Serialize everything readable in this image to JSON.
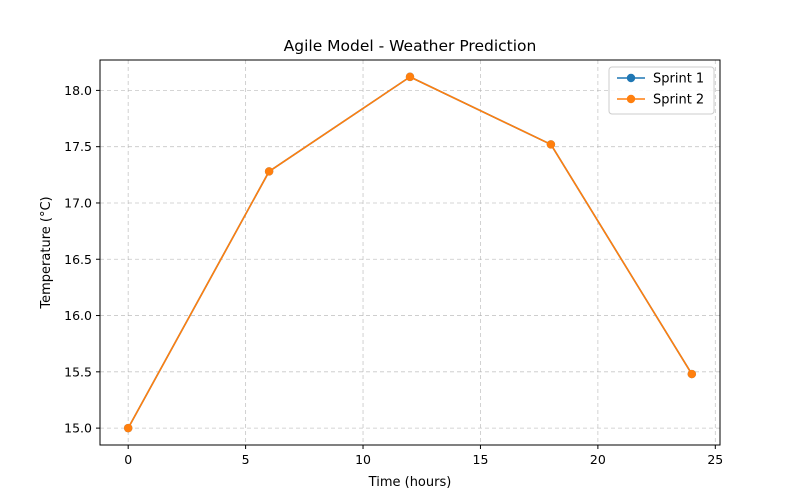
{
  "chart_data": {
    "type": "line",
    "title": "Agile Model - Weather Prediction",
    "xlabel": "Time (hours)",
    "ylabel": "Temperature (°C)",
    "xlim": [
      -1.2,
      25.2
    ],
    "ylim": [
      14.85,
      18.27
    ],
    "xticks": [
      0,
      5,
      10,
      15,
      20,
      25
    ],
    "yticks": [
      15.0,
      15.5,
      16.0,
      16.5,
      17.0,
      17.5,
      18.0
    ],
    "ytick_labels": [
      "15.0",
      "15.5",
      "16.0",
      "16.5",
      "17.0",
      "17.5",
      "18.0"
    ],
    "grid": true,
    "legend_position": "top-right",
    "x": [
      0,
      6,
      12,
      18,
      24
    ],
    "series": [
      {
        "name": "Sprint 1",
        "color": "#1f77b4",
        "values": [
          15.0,
          17.28,
          18.12,
          17.52,
          15.48
        ]
      },
      {
        "name": "Sprint 2",
        "color": "#ff7f0e",
        "values": [
          15.0,
          17.28,
          18.12,
          17.52,
          15.48
        ]
      }
    ]
  }
}
